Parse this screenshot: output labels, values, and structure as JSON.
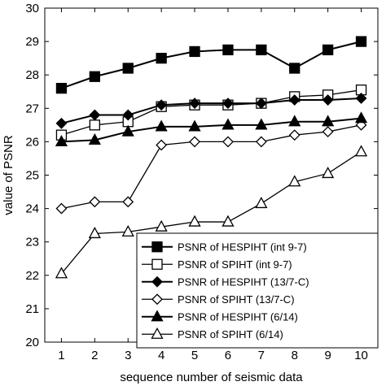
{
  "chart_data": {
    "type": "line",
    "xlabel": "sequence number of seismic data",
    "ylabel": "value of PSNR",
    "x": [
      1,
      2,
      3,
      4,
      5,
      6,
      7,
      8,
      9,
      10
    ],
    "xlim": [
      0.5,
      10.5
    ],
    "ylim": [
      20,
      30
    ],
    "yticks": [
      20,
      21,
      22,
      23,
      24,
      25,
      26,
      27,
      28,
      29,
      30
    ],
    "grid": false,
    "legend_position": "bottom-right",
    "series": [
      {
        "name": "PSNR of HESPIHT (int 9-7)",
        "marker": "square-filled",
        "values": [
          27.6,
          27.95,
          28.2,
          28.5,
          28.7,
          28.75,
          28.75,
          28.2,
          28.75,
          29.0
        ]
      },
      {
        "name": "PSNR of SPIHT (int 9-7)",
        "marker": "square-open",
        "values": [
          26.2,
          26.5,
          26.6,
          27.05,
          27.1,
          27.1,
          27.15,
          27.35,
          27.4,
          27.55
        ]
      },
      {
        "name": "PSNR of HESPIHT (13/7-C)",
        "marker": "diamond-filled",
        "values": [
          26.55,
          26.8,
          26.8,
          27.1,
          27.15,
          27.15,
          27.15,
          27.25,
          27.25,
          27.3
        ]
      },
      {
        "name": "PSNR of SPIHT (13/7-C)",
        "marker": "diamond-open",
        "values": [
          24.0,
          24.2,
          24.2,
          25.9,
          26.0,
          26.0,
          26.0,
          26.2,
          26.3,
          26.5
        ]
      },
      {
        "name": "PSNR of HESPIHT (6/14)",
        "marker": "triangle-filled",
        "values": [
          26.0,
          26.05,
          26.3,
          26.45,
          26.45,
          26.5,
          26.5,
          26.6,
          26.6,
          26.7
        ]
      },
      {
        "name": "PSNR of SPIHT (6/14)",
        "marker": "triangle-open",
        "values": [
          22.05,
          23.25,
          23.3,
          23.45,
          23.6,
          23.6,
          24.15,
          24.8,
          25.05,
          25.7
        ]
      }
    ]
  }
}
